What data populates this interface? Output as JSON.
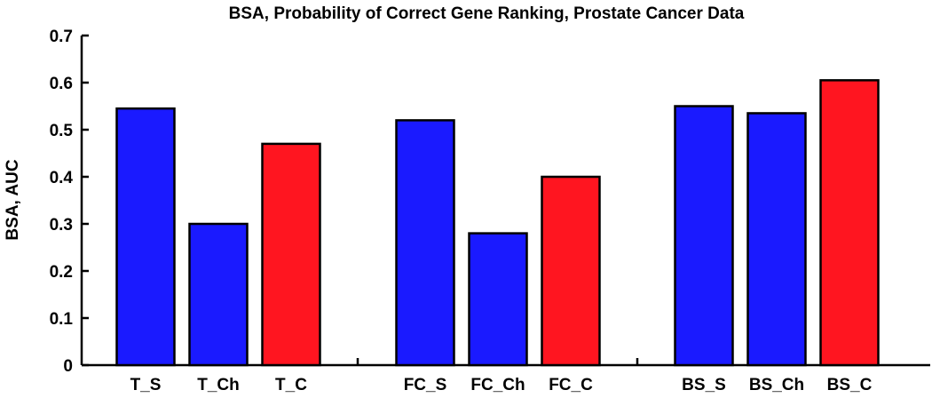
{
  "chart_data": {
    "type": "bar",
    "title": "BSA, Probability of Correct Gene Ranking, Prostate Cancer Data",
    "xlabel": "",
    "ylabel": "BSA, AUC",
    "ylim": [
      0,
      0.7
    ],
    "yticks": [
      "0",
      "0.1",
      "0.2",
      "0.3",
      "0.4",
      "0.5",
      "0.6",
      "0.7"
    ],
    "grid": false,
    "legend": "none",
    "colors": {
      "blue": "#1a1aff",
      "red": "#ff1520"
    },
    "groups": [
      {
        "bars": [
          {
            "label": "T_S",
            "value": 0.545,
            "color": "blue"
          },
          {
            "label": "T_Ch",
            "value": 0.3,
            "color": "blue"
          },
          {
            "label": "T_C",
            "value": 0.47,
            "color": "red"
          }
        ]
      },
      {
        "bars": [
          {
            "label": "FC_S",
            "value": 0.52,
            "color": "blue"
          },
          {
            "label": "FC_Ch",
            "value": 0.28,
            "color": "blue"
          },
          {
            "label": "FC_C",
            "value": 0.4,
            "color": "red"
          }
        ]
      },
      {
        "bars": [
          {
            "label": "BS_S",
            "value": 0.55,
            "color": "blue"
          },
          {
            "label": "BS_Ch",
            "value": 0.535,
            "color": "blue"
          },
          {
            "label": "BS_C",
            "value": 0.605,
            "color": "red"
          }
        ]
      }
    ]
  }
}
